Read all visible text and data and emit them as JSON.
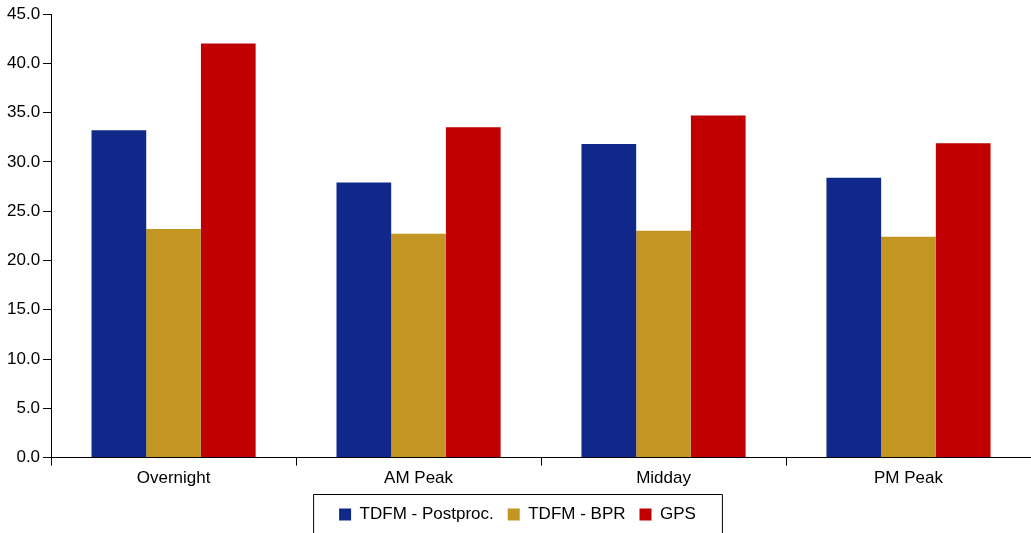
{
  "chart_data": {
    "type": "bar",
    "categories": [
      "Overnight",
      "AM Peak",
      "Midday",
      "PM Peak"
    ],
    "series": [
      {
        "name": "TDFM - Postproc.",
        "color": "#10288a",
        "values": [
          33.2,
          27.9,
          31.8,
          28.4
        ]
      },
      {
        "name": "TDFM - BPR",
        "color": "#c39523",
        "values": [
          23.2,
          22.7,
          23.0,
          22.4
        ]
      },
      {
        "name": "GPS",
        "color": "#c00000",
        "values": [
          42.0,
          33.5,
          34.7,
          31.9
        ]
      }
    ],
    "ylim": [
      0,
      45
    ],
    "yticks": [
      {
        "value": 0,
        "label": "0.0"
      },
      {
        "value": 5,
        "label": "5.0"
      },
      {
        "value": 10,
        "label": "10.0"
      },
      {
        "value": 15,
        "label": "15.0"
      },
      {
        "value": 20,
        "label": "20.0"
      },
      {
        "value": 25,
        "label": "25.0"
      },
      {
        "value": 30,
        "label": "30.0"
      },
      {
        "value": 35,
        "label": "35.0"
      },
      {
        "value": 40,
        "label": "40.0"
      },
      {
        "value": 45,
        "label": "45.0"
      }
    ],
    "grid": false,
    "legend": "bottom"
  }
}
